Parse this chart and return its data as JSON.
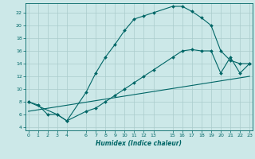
{
  "xlabel": "Humidex (Indice chaleur)",
  "bg_color": "#cce8e8",
  "grid_color": "#aacccc",
  "line_color": "#006666",
  "line1_x": [
    0,
    1,
    2,
    3,
    4,
    6,
    7,
    8,
    9,
    10,
    11,
    12,
    13,
    15,
    16,
    17,
    18,
    19,
    20,
    21,
    22,
    23
  ],
  "line1_y": [
    8,
    7.5,
    6,
    6,
    5,
    9.5,
    12.5,
    15,
    17,
    19.2,
    21,
    21.5,
    22,
    23,
    23,
    22.2,
    21.2,
    20,
    16,
    14.5,
    14,
    14
  ],
  "line2_x": [
    0,
    3,
    4,
    6,
    7,
    8,
    9,
    10,
    11,
    12,
    13,
    15,
    16,
    17,
    18,
    19,
    20,
    21,
    22,
    23
  ],
  "line2_y": [
    8,
    6,
    5,
    6.5,
    7,
    8,
    9,
    10,
    11,
    12,
    13,
    15,
    16,
    16.2,
    16,
    16,
    12.5,
    15,
    12.5,
    14
  ],
  "line3_x": [
    0,
    23
  ],
  "line3_y": [
    6.5,
    12
  ],
  "xtick_positions": [
    0,
    1,
    2,
    3,
    4,
    6,
    7,
    8,
    9,
    10,
    11,
    12,
    13,
    15,
    16,
    17,
    18,
    19,
    20,
    21,
    22,
    23
  ],
  "xtick_labels": [
    "0",
    "1",
    "2",
    "3",
    "4",
    "6",
    "7",
    "8",
    "9",
    "10",
    "11",
    "12",
    "13",
    "15",
    "16",
    "17",
    "18",
    "19",
    "20",
    "21",
    "22",
    "23"
  ],
  "ytick_positions": [
    4,
    6,
    8,
    10,
    12,
    14,
    16,
    18,
    20,
    22
  ],
  "ytick_labels": [
    "4",
    "6",
    "8",
    "10",
    "12",
    "14",
    "16",
    "18",
    "20",
    "22"
  ],
  "xlim": [
    -0.3,
    23.3
  ],
  "ylim": [
    3.5,
    23.5
  ]
}
